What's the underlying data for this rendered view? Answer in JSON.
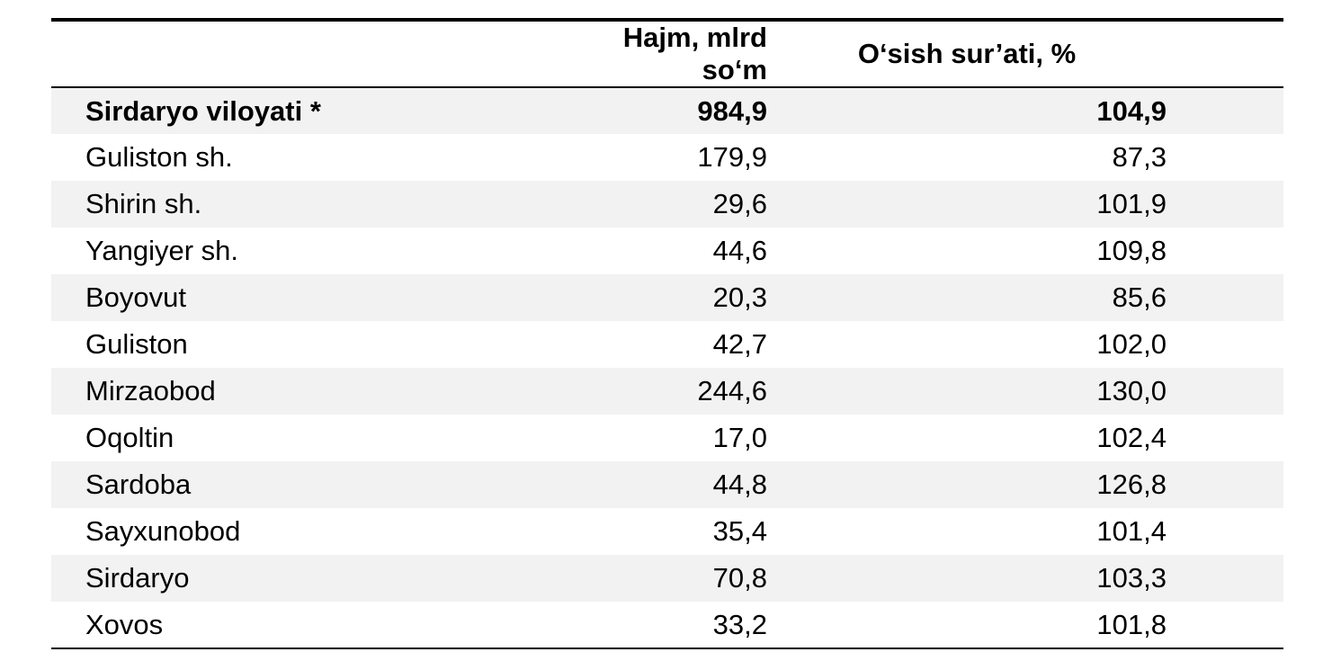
{
  "table": {
    "headers": [
      "",
      "Hajm, mlrd so‘m",
      "O‘sish sur’ati, %"
    ],
    "rows": [
      {
        "name": "Sirdaryo viloyati *",
        "volume": "984,9",
        "growth": "104,9",
        "bold": true
      },
      {
        "name": "Guliston sh.",
        "volume": "179,9",
        "growth": "87,3"
      },
      {
        "name": "Shirin sh.",
        "volume": "29,6",
        "growth": "101,9"
      },
      {
        "name": "Yangiyer sh.",
        "volume": "44,6",
        "growth": "109,8"
      },
      {
        "name": "Boyovut",
        "volume": "20,3",
        "growth": "85,6"
      },
      {
        "name": "Guliston",
        "volume": "42,7",
        "growth": "102,0"
      },
      {
        "name": "Mirzaobod",
        "volume": "244,6",
        "growth": "130,0"
      },
      {
        "name": "Oqoltin",
        "volume": "17,0",
        "growth": "102,4"
      },
      {
        "name": "Sardoba",
        "volume": "44,8",
        "growth": "126,8"
      },
      {
        "name": "Sayxunobod",
        "volume": "35,4",
        "growth": "101,4"
      },
      {
        "name": "Sirdaryo",
        "volume": "70,8",
        "growth": "103,3"
      },
      {
        "name": "Xovos",
        "volume": "33,2",
        "growth": "101,8"
      }
    ]
  }
}
